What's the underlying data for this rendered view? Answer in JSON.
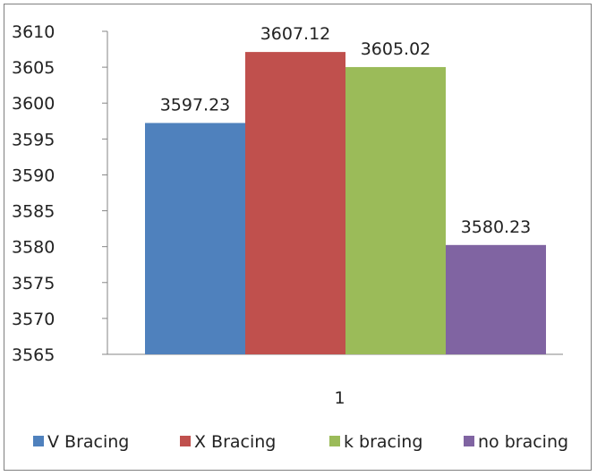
{
  "chart_data": {
    "type": "bar",
    "categories": [
      "1"
    ],
    "series": [
      {
        "name": "V Bracing",
        "values": [
          3597.23
        ],
        "color": "#4f81bd"
      },
      {
        "name": "X Bracing",
        "values": [
          3607.12
        ],
        "color": "#c0504d"
      },
      {
        "name": "k bracing",
        "values": [
          3605.02
        ],
        "color": "#9bbb59"
      },
      {
        "name": "no bracing",
        "values": [
          3580.23
        ],
        "color": "#8064a2"
      }
    ],
    "data_labels": [
      "3597.23",
      "3607.12",
      "3605.02",
      "3580.23"
    ],
    "y_ticks": [
      "3565",
      "3570",
      "3575",
      "3580",
      "3585",
      "3590",
      "3595",
      "3600",
      "3605",
      "3610"
    ],
    "ylim": [
      3565,
      3610
    ],
    "grid": false,
    "legend_position": "bottom",
    "title": "",
    "xlabel": "",
    "ylabel": ""
  }
}
